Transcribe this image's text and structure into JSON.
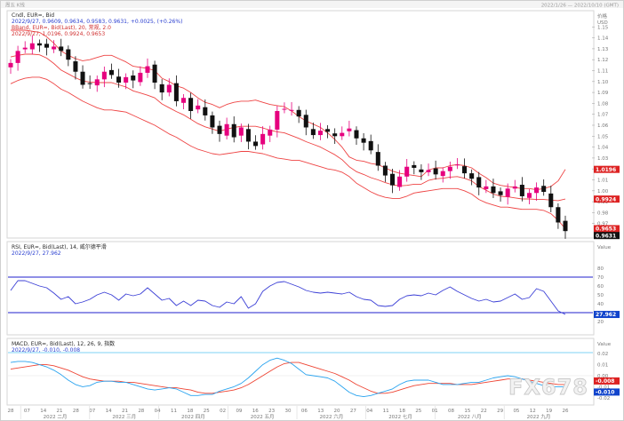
{
  "header": {
    "left": "周五 K线",
    "right": "2022/1/26 — 2022/10/10 (GMT)"
  },
  "watermark": "FX678",
  "colors": {
    "candle_up": "#e6007e",
    "candle_down": "#111111",
    "bollinger": "#ee4444",
    "rsi_line": "#3b3fd6",
    "macd_line": "#29a3ef",
    "signal_line": "#ee4433",
    "guide_line": "#2222cc",
    "tag_red": "#dd2222",
    "tag_dark": "#111111",
    "tag_blue": "#1144cc"
  },
  "panels": {
    "price": {
      "title": "Cndl, EUR=, Bid",
      "ohlc": "2022/9/27, 0.9609, 0.9634, 0.9583, 0.9631, +0.0025, (+0.26%)",
      "bb_title": "BBand, EUR=, Bid(Last), 20, 常规, 2.0",
      "bb_values": "2022/9/27, 1.0196, 0.9924, 0.9653",
      "axis_title": "价格",
      "axis_unit": "USD",
      "tags": [
        {
          "text": "1.0196",
          "value": 1.0196,
          "color": "#dd2222"
        },
        {
          "text": "0.9924",
          "value": 0.9924,
          "color": "#dd2222"
        },
        {
          "text": "0.9653",
          "value": 0.9653,
          "color": "#dd2222"
        },
        {
          "text": "0.9631",
          "value": 0.9631,
          "color": "#111111"
        }
      ]
    },
    "rsi": {
      "title": "RSI, EUR=, Bid(Last), 14, 威尔德平滑",
      "value_line": "2022/9/27, 27.962",
      "axis_unit": "Value",
      "guides": [
        70,
        30
      ],
      "tag": {
        "text": "27.962",
        "value": 27.962,
        "color": "#1144cc"
      }
    },
    "macd": {
      "title": "MACD, EUR=, Bid(Last), 12, 26, 9, 指数",
      "value_line": "2022/9/27, -0.010, -0.008",
      "axis_unit": "Value",
      "tags": [
        {
          "text": "-0.008",
          "value": -0.008,
          "color": "#dd2222"
        },
        {
          "text": "-0.010",
          "value": -0.01,
          "color": "#1144cc"
        }
      ]
    }
  },
  "xaxis": {
    "months": [
      "2022 二月",
      "2022 三月",
      "2022 四月",
      "2022 五月",
      "2022 六月",
      "2022 七月",
      "2022 八月",
      "2022 九月"
    ]
  },
  "chart_data": {
    "type": "candlestick",
    "instrument": "EUR=",
    "interval": "daily",
    "price_axis": {
      "range": [
        0.96,
        1.16
      ],
      "ticks": [
        1.15,
        1.14,
        1.13,
        1.12,
        1.11,
        1.1,
        1.09,
        1.08,
        1.07,
        1.06,
        1.05,
        1.04,
        1.03,
        1.02,
        1.01,
        1.0,
        0.99,
        0.98,
        0.97
      ]
    },
    "rsi_axis": {
      "range": [
        10,
        90
      ],
      "ticks": [
        80,
        70,
        60,
        50,
        40,
        30,
        20
      ]
    },
    "macd_axis": {
      "range": [
        -0.025,
        0.025
      ],
      "ticks": [
        0.02,
        0.01,
        0.0,
        -0.01,
        -0.02
      ]
    },
    "dates_shown": [
      "28",
      "07",
      "14",
      "21",
      "28",
      "07",
      "14",
      "21",
      "28",
      "04",
      "11",
      "18",
      "25",
      "02",
      "09",
      "16",
      "23",
      "30",
      "06",
      "13",
      "20",
      "27",
      "04",
      "11",
      "18",
      "25",
      "01",
      "08",
      "15",
      "22",
      "29",
      "05",
      "12",
      "19",
      "26"
    ],
    "close_series": [
      1.117,
      1.128,
      1.131,
      1.135,
      1.133,
      1.131,
      1.132,
      1.128,
      1.12,
      1.109,
      1.097,
      1.098,
      1.102,
      1.109,
      1.106,
      1.099,
      1.104,
      1.101,
      1.108,
      1.114,
      1.099,
      1.09,
      1.097,
      1.082,
      1.085,
      1.073,
      1.078,
      1.069,
      1.058,
      1.052,
      1.061,
      1.049,
      1.058,
      1.045,
      1.041,
      1.052,
      1.056,
      1.073,
      1.075,
      1.074,
      1.068,
      1.058,
      1.051,
      1.055,
      1.054,
      1.05,
      1.053,
      1.057,
      1.048,
      1.044,
      1.037,
      1.023,
      1.014,
      1.005,
      1.013,
      1.022,
      1.021,
      1.017,
      1.019,
      1.015,
      1.018,
      1.022,
      1.024,
      1.016,
      1.011,
      1.003,
      1.004,
      0.998,
      0.996,
      1.002,
      1.004,
      0.995,
      0.998,
      1.003,
      0.999,
      0.985,
      0.971,
      0.9631
    ],
    "bb_upper": [
      1.147,
      1.147,
      1.147,
      1.146,
      1.145,
      1.141,
      1.135,
      1.128,
      1.124,
      1.121,
      1.119,
      1.12,
      1.122,
      1.124,
      1.124,
      1.121,
      1.118,
      1.114,
      1.113,
      1.112,
      1.11,
      1.103,
      1.1,
      1.096,
      1.094,
      1.09,
      1.085,
      1.081,
      1.079,
      1.076,
      1.079,
      1.081,
      1.082,
      1.082,
      1.083,
      1.081,
      1.079,
      1.078,
      1.077,
      1.073,
      1.068,
      1.064,
      1.061,
      1.058,
      1.053,
      1.047,
      1.04,
      1.031,
      1.028,
      1.027,
      1.025,
      1.024,
      1.021,
      1.018,
      1.016,
      1.015,
      1.014,
      1.013,
      1.019,
      1.021,
      1.021,
      1.023,
      1.024,
      1.023,
      1.021,
      1.016,
      1.012,
      1.007,
      1.005,
      1.004,
      1.003,
      1.002,
      1.002,
      1.001,
      1.002,
      1.004,
      1.009,
      1.0196
    ],
    "bb_lower": [
      1.098,
      1.101,
      1.103,
      1.104,
      1.104,
      1.102,
      1.098,
      1.093,
      1.09,
      1.086,
      1.082,
      1.079,
      1.076,
      1.074,
      1.074,
      1.073,
      1.072,
      1.069,
      1.066,
      1.063,
      1.06,
      1.056,
      1.052,
      1.049,
      1.045,
      1.041,
      1.038,
      1.036,
      1.034,
      1.033,
      1.034,
      1.035,
      1.036,
      1.036,
      1.035,
      1.034,
      1.032,
      1.03,
      1.029,
      1.028,
      1.028,
      1.026,
      1.024,
      1.022,
      1.02,
      1.019,
      1.017,
      1.013,
      1.007,
      1.003,
      0.999,
      0.996,
      0.994,
      0.993,
      0.993,
      0.995,
      0.998,
      0.999,
      1.0,
      1.001,
      1.002,
      1.002,
      1.002,
      1.0,
      0.997,
      0.992,
      0.989,
      0.987,
      0.985,
      0.985,
      0.984,
      0.983,
      0.983,
      0.983,
      0.982,
      0.979,
      0.973,
      0.9653
    ],
    "rsi_series": [
      55,
      66,
      66,
      63,
      60,
      58,
      52,
      45,
      48,
      40,
      42,
      45,
      50,
      53,
      50,
      44,
      51,
      49,
      51,
      58,
      51,
      44,
      46,
      38,
      43,
      38,
      44,
      43,
      38,
      36,
      42,
      40,
      48,
      35,
      40,
      54,
      60,
      64,
      65,
      62,
      59,
      55,
      53,
      52,
      53,
      52,
      51,
      53,
      48,
      45,
      44,
      38,
      37,
      38,
      45,
      49,
      50,
      49,
      52,
      50,
      55,
      59,
      54,
      50,
      46,
      43,
      45,
      42,
      43,
      47,
      51,
      45,
      47,
      57,
      54,
      43,
      32,
      27.962
    ],
    "macd_series": [
      0.012,
      0.013,
      0.013,
      0.012,
      0.01,
      0.008,
      0.005,
      0.001,
      -0.004,
      -0.008,
      -0.01,
      -0.009,
      -0.006,
      -0.005,
      -0.005,
      -0.006,
      -0.006,
      -0.008,
      -0.01,
      -0.012,
      -0.013,
      -0.012,
      -0.011,
      -0.012,
      -0.015,
      -0.018,
      -0.018,
      -0.017,
      -0.017,
      -0.014,
      -0.012,
      -0.01,
      -0.007,
      -0.002,
      0.004,
      0.01,
      0.014,
      0.016,
      0.014,
      0.011,
      0.006,
      0.001,
      0.0,
      -0.001,
      -0.002,
      -0.005,
      -0.01,
      -0.015,
      -0.018,
      -0.019,
      -0.018,
      -0.016,
      -0.014,
      -0.012,
      -0.008,
      -0.005,
      -0.004,
      -0.004,
      -0.004,
      -0.006,
      -0.008,
      -0.008,
      -0.008,
      -0.007,
      -0.006,
      -0.006,
      -0.004,
      -0.002,
      -0.001,
      0.0,
      -0.001,
      -0.003,
      -0.005,
      -0.007,
      -0.009,
      -0.01,
      -0.01,
      -0.01
    ],
    "signal_series": [
      0.006,
      0.007,
      0.008,
      0.009,
      0.01,
      0.01,
      0.009,
      0.007,
      0.005,
      0.002,
      -0.001,
      -0.003,
      -0.004,
      -0.005,
      -0.005,
      -0.005,
      -0.006,
      -0.006,
      -0.007,
      -0.008,
      -0.009,
      -0.01,
      -0.011,
      -0.011,
      -0.012,
      -0.013,
      -0.015,
      -0.016,
      -0.016,
      -0.015,
      -0.014,
      -0.013,
      -0.011,
      -0.008,
      -0.004,
      0.0,
      0.004,
      0.008,
      0.011,
      0.012,
      0.012,
      0.01,
      0.008,
      0.006,
      0.004,
      0.002,
      -0.001,
      -0.004,
      -0.008,
      -0.011,
      -0.014,
      -0.016,
      -0.016,
      -0.015,
      -0.013,
      -0.011,
      -0.009,
      -0.008,
      -0.007,
      -0.007,
      -0.007,
      -0.007,
      -0.008,
      -0.008,
      -0.008,
      -0.007,
      -0.006,
      -0.005,
      -0.004,
      -0.003,
      -0.003,
      -0.003,
      -0.004,
      -0.005,
      -0.006,
      -0.007,
      -0.008,
      -0.008
    ]
  }
}
